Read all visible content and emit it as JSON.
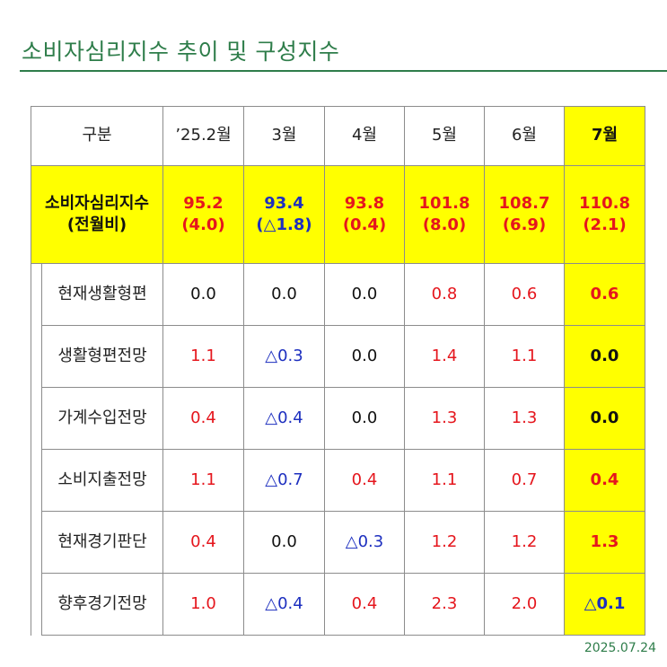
{
  "title": "소비자심리지수 추이 및 구성지수",
  "date": "2025.07.24",
  "colors": {
    "accent_green": "#2e7d4a",
    "highlight": "#ffff00",
    "increase": "#e5161d",
    "decrease": "#1d2fbf"
  },
  "header": [
    "구분",
    "’25.2월",
    "3월",
    "4월",
    "5월",
    "6월",
    "7월"
  ],
  "main_row": {
    "label_line1": "소비자심리지수",
    "label_line2": "(전월비)",
    "values": [
      {
        "value": "95.2",
        "change": "(4.0)",
        "color": "red"
      },
      {
        "value": "93.4",
        "change": "(△1.8)",
        "color": "blue"
      },
      {
        "value": "93.8",
        "change": "(0.4)",
        "color": "red"
      },
      {
        "value": "101.8",
        "change": "(8.0)",
        "color": "red"
      },
      {
        "value": "108.7",
        "change": "(6.9)",
        "color": "red"
      },
      {
        "value": "110.8",
        "change": "(2.1)",
        "color": "red"
      }
    ]
  },
  "rows": [
    {
      "label": "현재생활형편",
      "values": [
        {
          "v": "0.0",
          "c": "black"
        },
        {
          "v": "0.0",
          "c": "black"
        },
        {
          "v": "0.0",
          "c": "black"
        },
        {
          "v": "0.8",
          "c": "red"
        },
        {
          "v": "0.6",
          "c": "red"
        },
        {
          "v": "0.6",
          "c": "red"
        }
      ]
    },
    {
      "label": "생활형편전망",
      "values": [
        {
          "v": "1.1",
          "c": "red"
        },
        {
          "v": "△0.3",
          "c": "blue"
        },
        {
          "v": "0.0",
          "c": "black"
        },
        {
          "v": "1.4",
          "c": "red"
        },
        {
          "v": "1.1",
          "c": "red"
        },
        {
          "v": "0.0",
          "c": "black"
        }
      ]
    },
    {
      "label": "가계수입전망",
      "values": [
        {
          "v": "0.4",
          "c": "red"
        },
        {
          "v": "△0.4",
          "c": "blue"
        },
        {
          "v": "0.0",
          "c": "black"
        },
        {
          "v": "1.3",
          "c": "red"
        },
        {
          "v": "1.3",
          "c": "red"
        },
        {
          "v": "0.0",
          "c": "black"
        }
      ]
    },
    {
      "label": "소비지출전망",
      "values": [
        {
          "v": "1.1",
          "c": "red"
        },
        {
          "v": "△0.7",
          "c": "blue"
        },
        {
          "v": "0.4",
          "c": "red"
        },
        {
          "v": "1.1",
          "c": "red"
        },
        {
          "v": "0.7",
          "c": "red"
        },
        {
          "v": "0.4",
          "c": "red"
        }
      ]
    },
    {
      "label": "현재경기판단",
      "values": [
        {
          "v": "0.4",
          "c": "red"
        },
        {
          "v": "0.0",
          "c": "black"
        },
        {
          "v": "△0.3",
          "c": "blue"
        },
        {
          "v": "1.2",
          "c": "red"
        },
        {
          "v": "1.2",
          "c": "red"
        },
        {
          "v": "1.3",
          "c": "red"
        }
      ]
    },
    {
      "label": "향후경기전망",
      "values": [
        {
          "v": "1.0",
          "c": "red"
        },
        {
          "v": "△0.4",
          "c": "blue"
        },
        {
          "v": "0.4",
          "c": "red"
        },
        {
          "v": "2.3",
          "c": "red"
        },
        {
          "v": "2.0",
          "c": "red"
        },
        {
          "v": "△0.1",
          "c": "blue"
        }
      ]
    }
  ]
}
